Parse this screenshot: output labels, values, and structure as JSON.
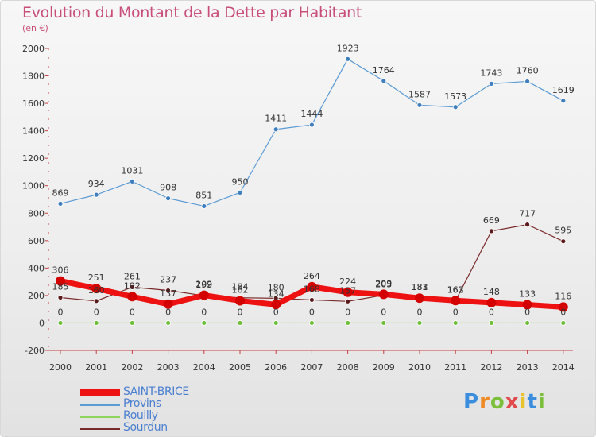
{
  "header": {
    "title": "Evolution du Montant de la Dette par Habitant",
    "subtitle": "(en €)"
  },
  "logo": {
    "text": "Proxiti",
    "colors": [
      "#3b8ede",
      "#f08a24",
      "#7bbf3a",
      "#e14a4a",
      "#e9c32a",
      "#3b8ede",
      "#7bbf3a"
    ]
  },
  "chart_data": {
    "type": "line",
    "x": [
      "2000",
      "2001",
      "2002",
      "2003",
      "2004",
      "2005",
      "2006",
      "2007",
      "2008",
      "2009",
      "2010",
      "2011",
      "2012",
      "2013",
      "2014"
    ],
    "ylim": [
      -200,
      2000
    ],
    "yticks": [
      "-200",
      "0",
      "200",
      "400",
      "600",
      "800",
      "1000",
      "1200",
      "1400",
      "1600",
      "1800",
      "2000"
    ],
    "grid": false,
    "legend_position": "bottom-left",
    "series": [
      {
        "name": "Provins",
        "color": "#5b9bd5",
        "marker": "#3f7fbf",
        "values": [
          869,
          934,
          1031,
          908,
          851,
          950,
          1411,
          1444,
          1923,
          1764,
          1587,
          1573,
          1743,
          1760,
          1619
        ],
        "labels": [
          "869",
          "934",
          "1031",
          "908",
          "851",
          "950",
          "1411",
          "1444",
          "1923",
          "1764",
          "1587",
          "1573",
          "1743",
          "1760",
          "1619"
        ]
      },
      {
        "name": "Rouilly",
        "color": "#8fd45a",
        "marker": "#6fbf3a",
        "values": [
          0,
          0,
          0,
          0,
          0,
          0,
          0,
          0,
          0,
          0,
          0,
          0,
          0,
          0,
          0
        ],
        "labels": [
          "0",
          "0",
          "0",
          "0",
          "0",
          "0",
          "0",
          "0",
          "0",
          "0",
          "0",
          "0",
          "0",
          "0",
          "0"
        ]
      },
      {
        "name": "Sourdun",
        "color": "#7a2a2a",
        "marker": "#5a1a1a",
        "values": [
          185,
          160,
          261,
          237,
          199,
          184,
          180,
          168,
          157,
          203,
          183,
          162,
          669,
          717,
          595
        ],
        "labels": [
          "185",
          "160",
          "261",
          "237",
          "199",
          "184",
          "180",
          "168",
          "157",
          "203",
          "183",
          "162",
          "669",
          "717",
          "595"
        ]
      },
      {
        "name": "SAINT-BRICE",
        "color": "#ee1111",
        "marker": "#d40000",
        "values": [
          306,
          251,
          192,
          137,
          202,
          162,
          134,
          264,
          224,
          209,
          181,
          163,
          148,
          133,
          116
        ],
        "labels": [
          "306",
          "251",
          "192",
          "137",
          "202",
          "162",
          "134",
          "264",
          "224",
          "209",
          "181",
          "163",
          "148",
          "133",
          "116"
        ]
      }
    ],
    "legend_order": [
      "SAINT-BRICE",
      "Provins",
      "Rouilly",
      "Sourdun"
    ]
  }
}
